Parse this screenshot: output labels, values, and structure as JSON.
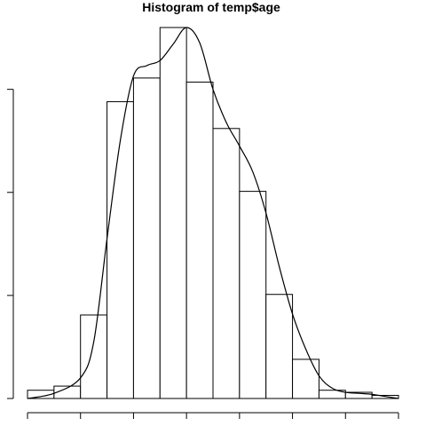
{
  "chart_data": {
    "type": "bar",
    "title": "Histogram of temp$age",
    "xlabel": "",
    "ylabel": "",
    "bin_count": 14,
    "values": [
      0.08,
      0.12,
      0.81,
      2.88,
      3.11,
      3.6,
      3.07,
      2.62,
      2.01,
      1.01,
      0.38,
      0.08,
      0.06,
      0.03
    ],
    "xlim": [
      0,
      14
    ],
    "ylim": [
      0,
      3.7
    ],
    "x_ticks": [
      0,
      2,
      4,
      6,
      8,
      10,
      12,
      14
    ],
    "y_ticks": [
      0,
      1,
      2,
      3
    ],
    "density_curve": {
      "x": [
        0,
        1,
        2,
        2.5,
        3,
        3.5,
        4,
        4.5,
        5,
        5.5,
        6,
        6.5,
        7,
        7.5,
        8,
        8.5,
        9,
        9.5,
        10,
        10.5,
        11,
        11.5,
        12,
        12.5,
        13,
        13.5,
        14
      ],
      "y": [
        0.0,
        0.05,
        0.2,
        0.55,
        1.55,
        2.5,
        3.13,
        3.23,
        3.28,
        3.44,
        3.6,
        3.45,
        3.0,
        2.68,
        2.45,
        2.2,
        1.8,
        1.28,
        0.82,
        0.48,
        0.22,
        0.1,
        0.06,
        0.05,
        0.04,
        0.02,
        0.0
      ]
    }
  }
}
